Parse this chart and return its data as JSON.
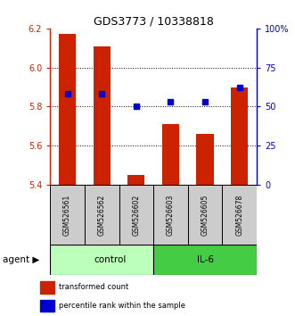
{
  "title": "GDS3773 / 10338818",
  "samples": [
    "GSM526561",
    "GSM526562",
    "GSM526602",
    "GSM526603",
    "GSM526605",
    "GSM526678"
  ],
  "red_values": [
    6.17,
    6.11,
    5.45,
    5.71,
    5.66,
    5.9
  ],
  "blue_values": [
    58,
    58,
    50,
    53,
    53,
    62
  ],
  "ylim_left": [
    5.4,
    6.2
  ],
  "ylim_right": [
    0,
    100
  ],
  "yticks_left": [
    5.4,
    5.6,
    5.8,
    6.0,
    6.2
  ],
  "yticks_right": [
    0,
    25,
    50,
    75,
    100
  ],
  "ytick_labels_right": [
    "0",
    "25",
    "50",
    "75",
    "100%"
  ],
  "bar_color": "#cc2200",
  "dot_color": "#0000cc",
  "control_color": "#bbffbb",
  "il6_color": "#44cc44",
  "sample_box_color": "#cccccc",
  "baseline": 5.4,
  "bar_width": 0.5,
  "legend_red_label": "transformed count",
  "legend_blue_label": "percentile rank within the sample",
  "agent_label": "agent",
  "control_label": "control",
  "il6_label": "IL-6",
  "grid_dotted_at": [
    5.6,
    5.8,
    6.0
  ],
  "n_control": 3,
  "n_il6": 3
}
